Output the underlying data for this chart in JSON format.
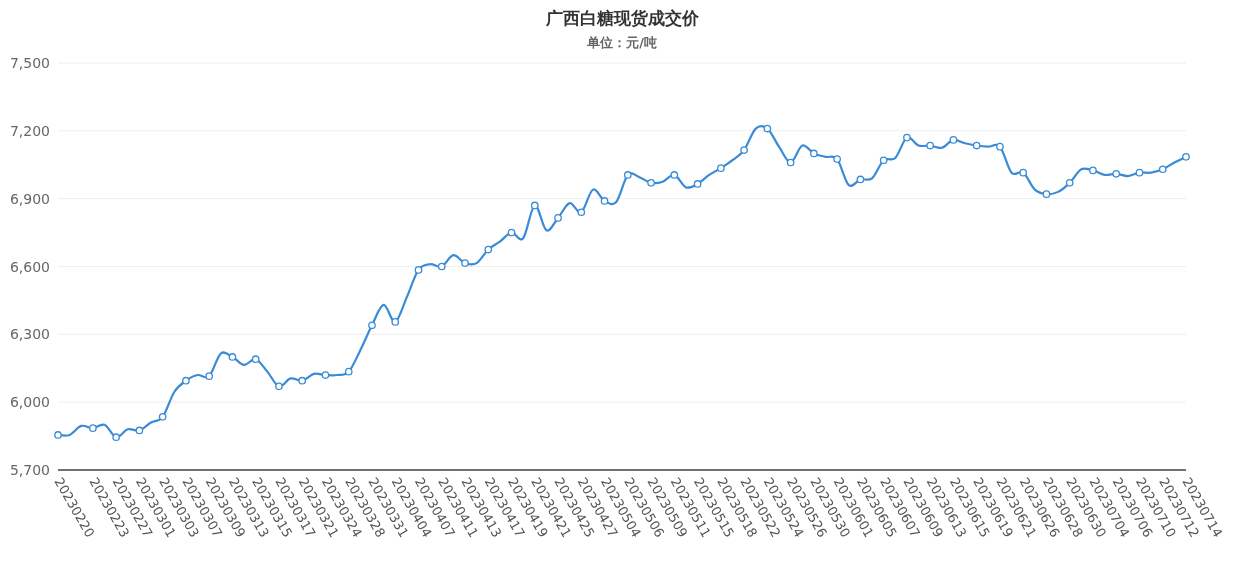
{
  "chart_data": {
    "type": "line",
    "title": "广西白糖现货成交价",
    "subtitle": "单位：元/吨",
    "categories": [
      "20230220",
      null,
      null,
      "20230223",
      null,
      "20230227",
      null,
      "20230301",
      null,
      "20230303",
      null,
      "20230307",
      null,
      "20230309",
      null,
      "20230313",
      null,
      "20230315",
      null,
      "20230317",
      null,
      "20230321",
      null,
      "20230324",
      null,
      "20230328",
      null,
      "20230331",
      null,
      "20230404",
      null,
      "20230407",
      null,
      "20230411",
      null,
      "20230413",
      null,
      "20230417",
      null,
      "20230419",
      null,
      "20230421",
      null,
      "20230425",
      null,
      "20230427",
      null,
      "20230504",
      null,
      "20230506",
      null,
      "20230509",
      null,
      "20230511",
      null,
      "20230515",
      null,
      "20230518",
      null,
      "20230522",
      null,
      "20230524",
      null,
      "20230526",
      null,
      "20230530",
      null,
      "20230601",
      null,
      "20230605",
      null,
      "20230607",
      null,
      "20230609",
      null,
      "20230613",
      null,
      "20230615",
      null,
      "20230619",
      null,
      "20230621",
      null,
      "20230626",
      null,
      "20230628",
      null,
      "20230630",
      null,
      "20230704",
      null,
      "20230706",
      null,
      "20230710",
      null,
      "20230712",
      null,
      "20230714"
    ],
    "series": [
      {
        "color": "#3a8bd6",
        "values": [
          5855,
          5855,
          5895,
          5885,
          5900,
          5845,
          5880,
          5875,
          5910,
          5935,
          6045,
          6095,
          6120,
          6115,
          6215,
          6200,
          6165,
          6190,
          6135,
          6070,
          6105,
          6095,
          6125,
          6120,
          6120,
          6135,
          6230,
          6340,
          6430,
          6355,
          6465,
          6585,
          6610,
          6600,
          6650,
          6615,
          6615,
          6675,
          6710,
          6750,
          6725,
          6870,
          6760,
          6815,
          6880,
          6840,
          6940,
          6890,
          6885,
          7005,
          6995,
          6970,
          6975,
          7005,
          6950,
          6965,
          7005,
          7035,
          7070,
          7115,
          7210,
          7210,
          7130,
          7060,
          7135,
          7100,
          7085,
          7075,
          6960,
          6985,
          6990,
          7070,
          7080,
          7170,
          7135,
          7135,
          7125,
          7160,
          7145,
          7135,
          7130,
          7130,
          7015,
          7015,
          6940,
          6920,
          6930,
          6970,
          7030,
          7025,
          7005,
          7010,
          7000,
          7015,
          7015,
          7030,
          7060,
          7085
        ]
      }
    ],
    "ylim": [
      5700,
      7500
    ],
    "yticks": [
      {
        "value": 5700,
        "label": "5,700"
      },
      {
        "value": 6000,
        "label": "6,000"
      },
      {
        "value": 6300,
        "label": "6,300"
      },
      {
        "value": 6600,
        "label": "6,600"
      },
      {
        "value": 6900,
        "label": "6,900"
      },
      {
        "value": 7200,
        "label": "7,200"
      },
      {
        "value": 7500,
        "label": "7,500"
      }
    ],
    "grid": "y",
    "marker": "circle",
    "line_style": "solid"
  }
}
